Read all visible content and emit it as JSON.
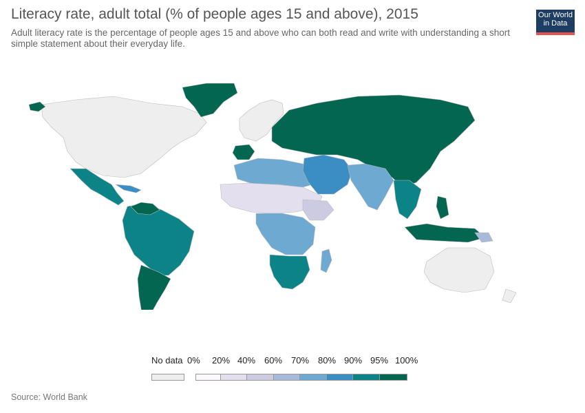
{
  "header": {
    "title": "Literacy rate, adult total (% of people ages 15 and above), 2015",
    "subtitle": "Adult literacy rate is the percentage of people ages 15 and above who can both read and write with understanding a short simple statement about their everyday life."
  },
  "logo": {
    "line1": "Our World",
    "line2": "in Data",
    "bg": "#1d3d63",
    "accent": "#e0554e"
  },
  "legend": {
    "no_data_label": "No data",
    "no_data_color": "#eeeeee",
    "bins": [
      {
        "from": "0%",
        "to": "20%",
        "color": "#fbf9fc"
      },
      {
        "from": "20%",
        "to": "40%",
        "color": "#e4dfee"
      },
      {
        "from": "40%",
        "to": "60%",
        "color": "#cdcbe2"
      },
      {
        "from": "60%",
        "to": "70%",
        "color": "#a8bad9"
      },
      {
        "from": "70%",
        "to": "80%",
        "color": "#6ea9d2"
      },
      {
        "from": "80%",
        "to": "90%",
        "color": "#3a8ec4"
      },
      {
        "from": "90%",
        "to": "95%",
        "color": "#0c8487"
      },
      {
        "from": "95%",
        "to": "100%",
        "color": "#036650"
      }
    ],
    "tick_labels": [
      "0%",
      "20%",
      "40%",
      "60%",
      "70%",
      "80%",
      "90%",
      "95%",
      "100%"
    ]
  },
  "map_regions": [
    {
      "name": "North America",
      "bin": "no-data"
    },
    {
      "name": "Greenland",
      "bin": "95-100"
    },
    {
      "name": "Mexico & Central America",
      "bin": "90-95"
    },
    {
      "name": "South America",
      "bin": "90-95"
    },
    {
      "name": "Southern Cone",
      "bin": "95-100"
    },
    {
      "name": "Western Europe",
      "bin": "no-data"
    },
    {
      "name": "Iberia",
      "bin": "95-100"
    },
    {
      "name": "Eastern Europe & Russia",
      "bin": "95-100"
    },
    {
      "name": "North Africa",
      "bin": "70-80"
    },
    {
      "name": "Sahel",
      "bin": "20-40"
    },
    {
      "name": "Central Africa",
      "bin": "70-80"
    },
    {
      "name": "Southern Africa",
      "bin": "90-95"
    },
    {
      "name": "Madagascar",
      "bin": "70-80"
    },
    {
      "name": "Middle East",
      "bin": "80-90"
    },
    {
      "name": "Central Asia",
      "bin": "95-100"
    },
    {
      "name": "South Asia",
      "bin": "70-80"
    },
    {
      "name": "China",
      "bin": "95-100"
    },
    {
      "name": "Southeast Asia",
      "bin": "90-95"
    },
    {
      "name": "Indonesia",
      "bin": "95-100"
    },
    {
      "name": "Australia",
      "bin": "no-data"
    }
  ],
  "source": "Source: World Bank"
}
